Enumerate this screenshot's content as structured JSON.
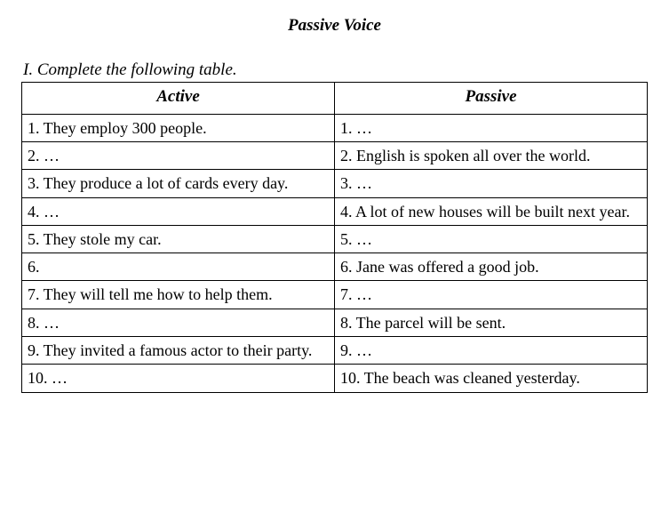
{
  "title": "Passive Voice",
  "instruction": "I. Complete the following table.",
  "headers": {
    "active": "Active",
    "passive": "Passive"
  },
  "rows": [
    {
      "active": "1. They employ 300 people.",
      "passive": "1. …"
    },
    {
      "active": "2. …",
      "passive": "2. English is spoken all over the world."
    },
    {
      "active": "3. They produce a lot of cards every day.",
      "passive": "3. …"
    },
    {
      "active": "4. …",
      "passive": "4. A lot of new houses will be built next year."
    },
    {
      "active": "5. They stole my car.",
      "passive": "5. …"
    },
    {
      "active": "6.",
      "passive": "6. Jane was offered a good job."
    },
    {
      "active": "7. They will tell me how to help them.",
      "passive": "7. …"
    },
    {
      "active": "8. …",
      "passive": "8. The parcel will be sent."
    },
    {
      "active": "9. They invited a famous actor to their party.",
      "passive": "9. …"
    },
    {
      "active": "10. …",
      "passive": "10. The beach was cleaned yesterday."
    }
  ]
}
